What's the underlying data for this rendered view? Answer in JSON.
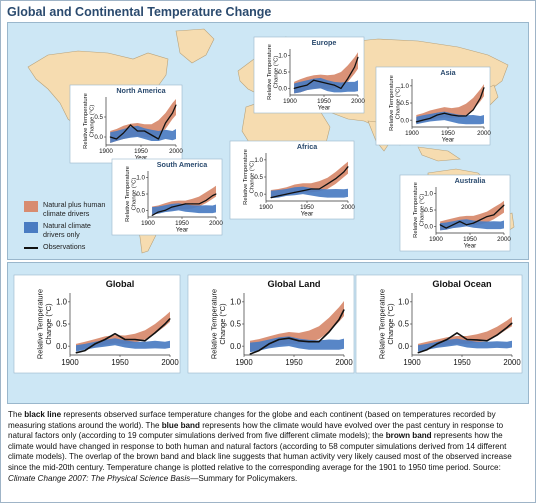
{
  "title": "Global and Continental Temperature Change",
  "colors": {
    "natural_plus_human": "#d88c70",
    "natural_only": "#4a7cc2",
    "observations": "#111111",
    "land": "#f6dcb0",
    "ocean": "#cde7f5",
    "panel_bg": "#ffffff"
  },
  "legend": {
    "items": [
      {
        "label": "Natural plus human climate drivers",
        "kind": "band",
        "color": "#d88c70"
      },
      {
        "label": "Natural climate drivers only",
        "kind": "band",
        "color": "#4a7cc2"
      },
      {
        "label": "Observations",
        "kind": "line",
        "color": "#111111"
      }
    ]
  },
  "caption": {
    "p1": "The ",
    "b1": "black line",
    "p2": " represents observed surface temperature changes for the globe and each continent (based on temperatures recorded by measuring stations around the world). The ",
    "b2": "blue band",
    "p3": " represents how the climate would have evolved over the past century in response to natural factors only (according to 19 computer simulations derived from five different climate models); the ",
    "b3": "brown band",
    "p4": " represents how the climate would have changed in response to both human and natural factors (according to 58 computer simulations derived from 14 different climate models). The overlap of the brown band and black line suggests that human activity very likely caused most of the observed increase since the mid-20th century. Temperature change is plotted relative to the corresponding average for the 1901 to 1950 time period. Source: ",
    "i1": "Climate Change 2007: The Physical Science Basis",
    "p5": "—Summary for Policymakers."
  },
  "chart_data": [
    {
      "type": "area",
      "title": "North America",
      "xlabel": "Year",
      "ylabel": "Relative Temperature Change (°C)",
      "xlim": [
        1900,
        2000
      ],
      "ylim": [
        -0.2,
        1.0
      ],
      "xticks": [
        1900,
        1950,
        2000
      ],
      "yticks": [
        0.0,
        0.5
      ],
      "x": [
        1906,
        1915,
        1925,
        1935,
        1945,
        1955,
        1965,
        1975,
        1985,
        1995,
        2000
      ],
      "series": [
        {
          "name": "Natural plus human climate drivers",
          "low": [
            -0.15,
            -0.1,
            -0.05,
            0.0,
            0.02,
            0.0,
            -0.02,
            0.05,
            0.2,
            0.45,
            0.55
          ],
          "high": [
            0.15,
            0.2,
            0.28,
            0.33,
            0.35,
            0.32,
            0.32,
            0.42,
            0.6,
            0.85,
            0.95
          ]
        },
        {
          "name": "Natural climate drivers only",
          "low": [
            -0.15,
            -0.1,
            -0.05,
            -0.02,
            0.0,
            -0.05,
            -0.1,
            -0.1,
            -0.05,
            -0.08,
            -0.05
          ],
          "high": [
            0.12,
            0.15,
            0.2,
            0.25,
            0.28,
            0.22,
            0.18,
            0.15,
            0.18,
            0.15,
            0.2
          ]
        },
        {
          "name": "Observations",
          "values": [
            0.0,
            -0.05,
            0.1,
            0.3,
            0.15,
            0.15,
            0.05,
            -0.05,
            0.35,
            0.6,
            0.8
          ]
        }
      ]
    },
    {
      "type": "area",
      "title": "Europe",
      "xlabel": "Year",
      "ylabel": "Relative Temperature Change (°C)",
      "xlim": [
        1900,
        2000
      ],
      "ylim": [
        -0.2,
        1.2
      ],
      "xticks": [
        1900,
        1950,
        2000
      ],
      "yticks": [
        0.0,
        0.5,
        1.0
      ],
      "x": [
        1906,
        1915,
        1925,
        1935,
        1945,
        1955,
        1965,
        1975,
        1985,
        1995,
        2000
      ],
      "series": [
        {
          "name": "Natural plus human climate drivers",
          "low": [
            -0.15,
            -0.12,
            -0.05,
            0.0,
            0.0,
            -0.02,
            0.0,
            0.05,
            0.2,
            0.45,
            0.6
          ],
          "high": [
            0.2,
            0.28,
            0.35,
            0.4,
            0.42,
            0.4,
            0.42,
            0.5,
            0.7,
            0.95,
            1.1
          ]
        },
        {
          "name": "Natural climate drivers only",
          "low": [
            -0.15,
            -0.12,
            -0.05,
            -0.02,
            0.0,
            -0.08,
            -0.12,
            -0.12,
            -0.1,
            -0.1,
            -0.08
          ],
          "high": [
            0.15,
            0.2,
            0.25,
            0.3,
            0.32,
            0.25,
            0.2,
            0.18,
            0.2,
            0.2,
            0.25
          ]
        },
        {
          "name": "Observations",
          "values": [
            0.0,
            0.05,
            0.1,
            0.25,
            0.2,
            0.15,
            0.1,
            0.0,
            0.3,
            0.65,
            0.95
          ]
        }
      ]
    },
    {
      "type": "area",
      "title": "Asia",
      "xlabel": "Year",
      "ylabel": "Relative Temperature Change (°C)",
      "xlim": [
        1900,
        2000
      ],
      "ylim": [
        -0.2,
        1.2
      ],
      "xticks": [
        1900,
        1950,
        2000
      ],
      "yticks": [
        0.0,
        0.5,
        1.0
      ],
      "x": [
        1906,
        1915,
        1925,
        1935,
        1945,
        1955,
        1965,
        1975,
        1985,
        1995,
        2000
      ],
      "series": [
        {
          "name": "Natural plus human climate drivers",
          "low": [
            -0.1,
            -0.05,
            0.0,
            0.05,
            0.08,
            0.06,
            0.08,
            0.15,
            0.3,
            0.55,
            0.7
          ],
          "high": [
            0.15,
            0.2,
            0.28,
            0.33,
            0.38,
            0.35,
            0.38,
            0.48,
            0.65,
            0.9,
            1.05
          ]
        },
        {
          "name": "Natural climate drivers only",
          "low": [
            -0.12,
            -0.08,
            -0.04,
            -0.02,
            0.0,
            -0.05,
            -0.1,
            -0.12,
            -0.12,
            -0.12,
            -0.1
          ],
          "high": [
            0.1,
            0.14,
            0.18,
            0.22,
            0.25,
            0.2,
            0.16,
            0.14,
            0.15,
            0.12,
            0.15
          ]
        },
        {
          "name": "Observations",
          "values": [
            -0.05,
            0.0,
            0.05,
            0.15,
            0.2,
            0.15,
            0.12,
            0.12,
            0.3,
            0.65,
            0.95
          ]
        }
      ]
    },
    {
      "type": "area",
      "title": "Africa",
      "xlabel": "Year",
      "ylabel": "Relative Temperature Change (°C)",
      "xlim": [
        1900,
        2000
      ],
      "ylim": [
        -0.2,
        1.2
      ],
      "xticks": [
        1900,
        1950,
        2000
      ],
      "yticks": [
        0.0,
        0.5,
        1.0
      ],
      "x": [
        1906,
        1915,
        1925,
        1935,
        1945,
        1955,
        1965,
        1975,
        1985,
        1995,
        2000
      ],
      "series": [
        {
          "name": "Natural plus human climate drivers",
          "low": [
            -0.12,
            -0.08,
            -0.03,
            0.02,
            0.05,
            0.05,
            0.08,
            0.15,
            0.3,
            0.5,
            0.6
          ],
          "high": [
            0.12,
            0.15,
            0.2,
            0.28,
            0.32,
            0.32,
            0.38,
            0.48,
            0.65,
            0.85,
            0.95
          ]
        },
        {
          "name": "Natural climate drivers only",
          "low": [
            -0.12,
            -0.1,
            -0.05,
            -0.03,
            0.0,
            -0.04,
            -0.08,
            -0.1,
            -0.1,
            -0.1,
            -0.08
          ],
          "high": [
            0.1,
            0.12,
            0.15,
            0.2,
            0.22,
            0.18,
            0.15,
            0.14,
            0.15,
            0.14,
            0.16
          ]
        },
        {
          "name": "Observations",
          "values": [
            -0.1,
            -0.05,
            0.0,
            0.05,
            0.1,
            0.15,
            0.15,
            0.3,
            0.45,
            0.65,
            0.8
          ]
        }
      ]
    },
    {
      "type": "area",
      "title": "South America",
      "xlabel": "Year",
      "ylabel": "Relative Temperature Change (°C)",
      "xlim": [
        1900,
        2000
      ],
      "ylim": [
        -0.2,
        1.2
      ],
      "xticks": [
        1900,
        1950,
        2000
      ],
      "yticks": [
        0.0,
        0.5,
        1.0
      ],
      "x": [
        1906,
        1915,
        1925,
        1935,
        1945,
        1955,
        1965,
        1975,
        1985,
        1995,
        2000
      ],
      "series": [
        {
          "name": "Natural plus human climate drivers",
          "low": [
            -0.12,
            -0.08,
            -0.03,
            0.0,
            0.03,
            0.03,
            0.06,
            0.12,
            0.22,
            0.35,
            0.42
          ],
          "high": [
            0.12,
            0.15,
            0.22,
            0.28,
            0.3,
            0.3,
            0.35,
            0.42,
            0.55,
            0.68,
            0.75
          ]
        },
        {
          "name": "Natural climate drivers only",
          "low": [
            -0.12,
            -0.1,
            -0.05,
            -0.03,
            0.0,
            -0.04,
            -0.06,
            -0.08,
            -0.08,
            -0.08,
            -0.06
          ],
          "high": [
            0.1,
            0.12,
            0.16,
            0.2,
            0.22,
            0.18,
            0.16,
            0.15,
            0.16,
            0.15,
            0.18
          ]
        },
        {
          "name": "Observations",
          "values": [
            -0.15,
            -0.05,
            0.0,
            0.1,
            0.15,
            0.2,
            0.2,
            0.2,
            0.3,
            0.45,
            0.5
          ]
        }
      ]
    },
    {
      "type": "area",
      "title": "Australia",
      "xlabel": "Year",
      "ylabel": "Relative Temperature Change (°C)",
      "xlim": [
        1900,
        2000
      ],
      "ylim": [
        -0.2,
        1.2
      ],
      "xticks": [
        1900,
        1950,
        2000
      ],
      "yticks": [
        0.0,
        0.5,
        1.0
      ],
      "x": [
        1906,
        1915,
        1925,
        1935,
        1945,
        1955,
        1965,
        1975,
        1985,
        1995,
        2000
      ],
      "series": [
        {
          "name": "Natural plus human climate drivers",
          "low": [
            -0.12,
            -0.08,
            -0.03,
            0.0,
            0.03,
            0.03,
            0.06,
            0.12,
            0.22,
            0.35,
            0.42
          ],
          "high": [
            0.15,
            0.2,
            0.25,
            0.3,
            0.32,
            0.32,
            0.38,
            0.45,
            0.58,
            0.7,
            0.78
          ]
        },
        {
          "name": "Natural climate drivers only",
          "low": [
            -0.12,
            -0.1,
            -0.05,
            -0.03,
            0.0,
            -0.04,
            -0.06,
            -0.08,
            -0.08,
            -0.08,
            -0.06
          ],
          "high": [
            0.1,
            0.12,
            0.16,
            0.2,
            0.22,
            0.18,
            0.16,
            0.15,
            0.16,
            0.15,
            0.18
          ]
        },
        {
          "name": "Observations",
          "values": [
            0.05,
            -0.05,
            0.05,
            0.15,
            0.05,
            0.1,
            0.2,
            0.3,
            0.35,
            0.55,
            0.65
          ]
        }
      ]
    },
    {
      "type": "area",
      "title": "Global",
      "xlabel": "",
      "ylabel": "Relative Temperature Change (°C)",
      "xlim": [
        1900,
        2000
      ],
      "ylim": [
        -0.2,
        1.2
      ],
      "xticks": [
        1900,
        1950,
        2000
      ],
      "yticks": [
        0.0,
        0.5,
        1.0
      ],
      "x": [
        1906,
        1915,
        1925,
        1935,
        1945,
        1955,
        1965,
        1975,
        1985,
        1995,
        2000
      ],
      "series": [
        {
          "name": "Natural plus human climate drivers",
          "low": [
            -0.1,
            -0.06,
            -0.02,
            0.03,
            0.06,
            0.05,
            0.08,
            0.15,
            0.28,
            0.45,
            0.55
          ],
          "high": [
            0.05,
            0.1,
            0.16,
            0.22,
            0.25,
            0.24,
            0.28,
            0.36,
            0.5,
            0.68,
            0.78
          ]
        },
        {
          "name": "Natural climate drivers only",
          "low": [
            -0.12,
            -0.08,
            -0.04,
            -0.01,
            0.02,
            -0.03,
            -0.06,
            -0.06,
            -0.05,
            -0.06,
            -0.04
          ],
          "high": [
            0.02,
            0.05,
            0.1,
            0.14,
            0.18,
            0.13,
            0.1,
            0.1,
            0.12,
            0.1,
            0.12
          ]
        },
        {
          "name": "Observations",
          "values": [
            -0.15,
            -0.1,
            0.05,
            0.15,
            0.28,
            0.15,
            0.15,
            0.12,
            0.3,
            0.5,
            0.62
          ]
        }
      ]
    },
    {
      "type": "area",
      "title": "Global Land",
      "xlabel": "",
      "ylabel": "Relative Temperature Change (°C)",
      "xlim": [
        1900,
        2000
      ],
      "ylim": [
        -0.2,
        1.2
      ],
      "xticks": [
        1900,
        1950,
        2000
      ],
      "yticks": [
        0.0,
        0.5,
        1.0
      ],
      "x": [
        1906,
        1915,
        1925,
        1935,
        1945,
        1955,
        1965,
        1975,
        1985,
        1995,
        2000
      ],
      "series": [
        {
          "name": "Natural plus human climate drivers",
          "low": [
            -0.12,
            -0.08,
            -0.03,
            0.02,
            0.05,
            0.05,
            0.08,
            0.16,
            0.32,
            0.55,
            0.68
          ],
          "high": [
            0.12,
            0.16,
            0.22,
            0.28,
            0.32,
            0.3,
            0.35,
            0.45,
            0.64,
            0.88,
            1.02
          ]
        },
        {
          "name": "Natural climate drivers only",
          "low": [
            -0.14,
            -0.1,
            -0.05,
            -0.02,
            0.0,
            -0.05,
            -0.08,
            -0.08,
            -0.08,
            -0.08,
            -0.06
          ],
          "high": [
            0.08,
            0.1,
            0.15,
            0.2,
            0.22,
            0.17,
            0.14,
            0.13,
            0.15,
            0.14,
            0.17
          ]
        },
        {
          "name": "Observations",
          "values": [
            -0.18,
            -0.1,
            0.05,
            0.15,
            0.18,
            0.12,
            0.1,
            0.1,
            0.32,
            0.6,
            0.82
          ]
        }
      ]
    },
    {
      "type": "area",
      "title": "Global Ocean",
      "xlabel": "",
      "ylabel": "Relative Temperature Change (°C)",
      "xlim": [
        1900,
        2000
      ],
      "ylim": [
        -0.2,
        1.2
      ],
      "xticks": [
        1900,
        1950,
        2000
      ],
      "yticks": [
        0.0,
        0.5,
        1.0
      ],
      "x": [
        1906,
        1915,
        1925,
        1935,
        1945,
        1955,
        1965,
        1975,
        1985,
        1995,
        2000
      ],
      "series": [
        {
          "name": "Natural plus human climate drivers",
          "low": [
            -0.1,
            -0.06,
            -0.02,
            0.02,
            0.05,
            0.05,
            0.08,
            0.13,
            0.23,
            0.38,
            0.45
          ],
          "high": [
            0.05,
            0.1,
            0.15,
            0.2,
            0.23,
            0.23,
            0.27,
            0.33,
            0.44,
            0.58,
            0.66
          ]
        },
        {
          "name": "Natural climate drivers only",
          "low": [
            -0.12,
            -0.08,
            -0.04,
            -0.01,
            0.02,
            -0.03,
            -0.05,
            -0.05,
            -0.04,
            -0.05,
            -0.03
          ],
          "high": [
            0.02,
            0.05,
            0.1,
            0.14,
            0.17,
            0.13,
            0.1,
            0.1,
            0.11,
            0.1,
            0.12
          ]
        },
        {
          "name": "Observations",
          "values": [
            -0.15,
            -0.08,
            0.05,
            0.15,
            0.3,
            0.15,
            0.14,
            0.12,
            0.25,
            0.42,
            0.52
          ]
        }
      ]
    }
  ]
}
